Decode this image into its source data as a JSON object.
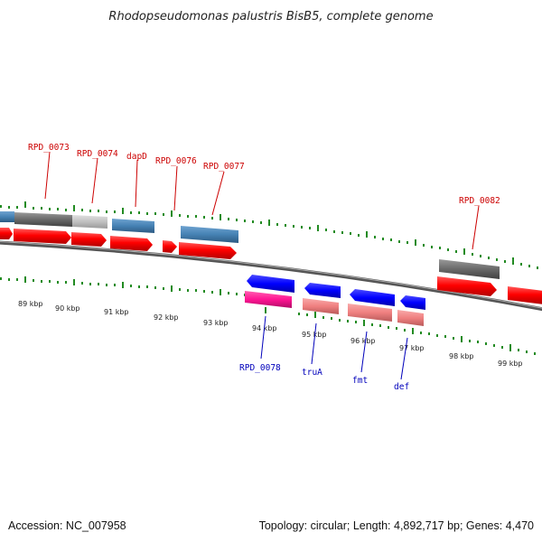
{
  "title": "Rhodopseudomonas palustris BisB5, complete genome",
  "footer": {
    "accession": "Accession: NC_007958",
    "topology": "Topology: circular; Length: 4,892,717 bp; Genes: 4,470"
  },
  "scale_labels": [
    "89 kbp",
    "90 kbp",
    "91 kbp",
    "92 kbp",
    "93 kbp",
    "94 kbp",
    "95 kbp",
    "96 kbp",
    "97 kbp",
    "98 kbp",
    "99 kbp"
  ],
  "gene_labels": {
    "rpd_0073": "RPD_0073",
    "rpd_0074": "RPD_0074",
    "dapd": "dapD",
    "rpd_0076": "RPD_0076",
    "rpd_0077": "RPD_0077",
    "rpd_0082": "RPD_0082",
    "rpd_0078": "RPD_0078",
    "trua": "truA",
    "fmt": "fmt",
    "def": "def"
  },
  "colors": {
    "cds_red": "#ff0000",
    "gene_blue": "#4682b4",
    "gene_grey": "#696969",
    "gene_light_grey": "#c0c0c0",
    "cds_blue": "#0000ff",
    "gene_pink": "#ff1493",
    "gene_salmon": "#f08080",
    "tick_green": "#228b22",
    "label_red": "#cc0000",
    "label_blue": "#0000bb"
  }
}
